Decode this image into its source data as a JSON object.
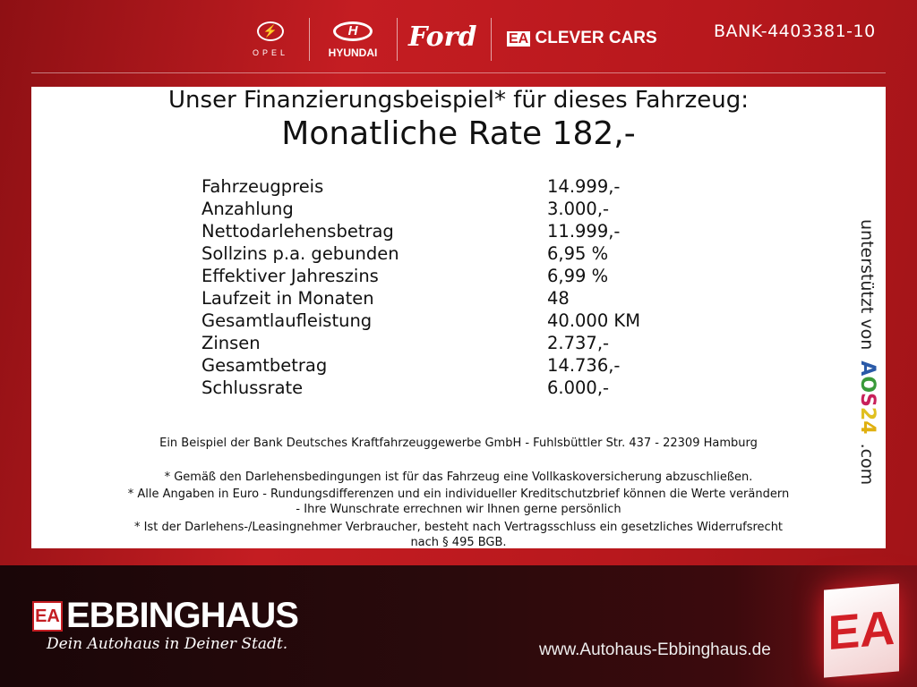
{
  "header": {
    "brands": [
      "OPEL",
      "HYUNDAI",
      "Ford",
      "CLEVER CARS"
    ],
    "clever_cars_badge": "EA",
    "bank_code": "BANK-4403381-10"
  },
  "offer": {
    "headline": "Unser Finanzierungsbeispiel* für dieses Fahrzeug:",
    "monthly_rate": "Monatliche Rate 182,-",
    "rows": [
      {
        "label": "Fahrzeugpreis",
        "value": "14.999,-"
      },
      {
        "label": "Anzahlung",
        "value": "3.000,-"
      },
      {
        "label": "Nettodarlehensbetrag",
        "value": "11.999,-"
      },
      {
        "label": "Sollzins p.a. gebunden",
        "value": "6,95 %"
      },
      {
        "label": "Effektiver Jahreszins",
        "value": "6,99 %"
      },
      {
        "label": "Laufzeit in Monaten",
        "value": "48"
      },
      {
        "label": "Gesamtlaufleistung",
        "value": "40.000 KM"
      },
      {
        "label": "Zinsen",
        "value": "2.737,-"
      },
      {
        "label": "Gesamtbetrag",
        "value": "14.736,-"
      },
      {
        "label": "Schlussrate",
        "value": "6.000,-"
      }
    ],
    "bank_note": "Ein Beispiel der Bank Deutsches Kraftfahrzeuggewerbe GmbH - Fuhlsbüttler Str. 437 - 22309 Hamburg",
    "footnotes": [
      "* Gemäß den Darlehensbedingungen ist für das Fahrzeug eine Vollkaskoversicherung abzuschließen.",
      "* Alle Angaben in Euro - Rundungsdifferenzen und ein individueller Kreditschutzbrief können die Werte verändern",
      "- Ihre Wunschrate errechnen wir Ihnen gerne persönlich",
      "* Ist der Darlehens-/Leasingnehmer Verbraucher, besteht nach Vertragsschluss ein gesetzliches Widerrufsrecht",
      "nach § 495 BGB."
    ],
    "supported_by": "unterstützt von",
    "aos_letters": [
      "A",
      "O",
      "S",
      "2",
      "4"
    ],
    "aos_colors": [
      "#2a5aa8",
      "#3a9a3a",
      "#c8205a",
      "#e0c020",
      "#e0b010"
    ],
    "aos_suffix": ".com"
  },
  "footer": {
    "logo_badge": "EA",
    "company": "EBBINGHAUS",
    "slogan": "Dein Autohaus in Deiner Stadt.",
    "website": "www.Autohaus-Ebbinghaus.de"
  }
}
